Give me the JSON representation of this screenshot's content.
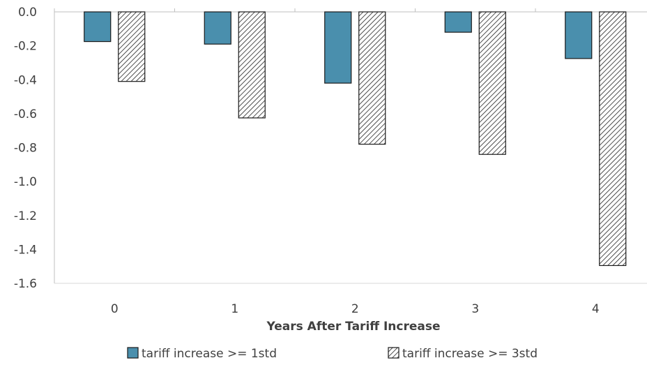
{
  "chart_data": {
    "type": "bar",
    "title": "",
    "xlabel": "Years After Tariff Increase",
    "ylabel": "",
    "categories": [
      "0",
      "1",
      "2",
      "3",
      "4"
    ],
    "ylim": [
      -1.6,
      0.0
    ],
    "yticks": [
      0.0,
      -0.2,
      -0.4,
      -0.6,
      -0.8,
      -1.0,
      -1.2,
      -1.4,
      -1.6
    ],
    "ytick_labels": [
      "0.0",
      "-0.2",
      "-0.4",
      "-0.6",
      "-0.8",
      "-1.0",
      "-1.2",
      "-1.4",
      "-1.6"
    ],
    "grid": false,
    "legend_position": "bottom",
    "series": [
      {
        "name": "tariff increase >= 1std",
        "values": [
          -0.175,
          -0.19,
          -0.42,
          -0.12,
          -0.275
        ],
        "color": "#4a8fad",
        "style": "solid"
      },
      {
        "name": "tariff increase >= 3std",
        "values": [
          -0.41,
          -0.625,
          -0.78,
          -0.84,
          -1.495
        ],
        "color": "#222222",
        "style": "hatched"
      }
    ]
  }
}
